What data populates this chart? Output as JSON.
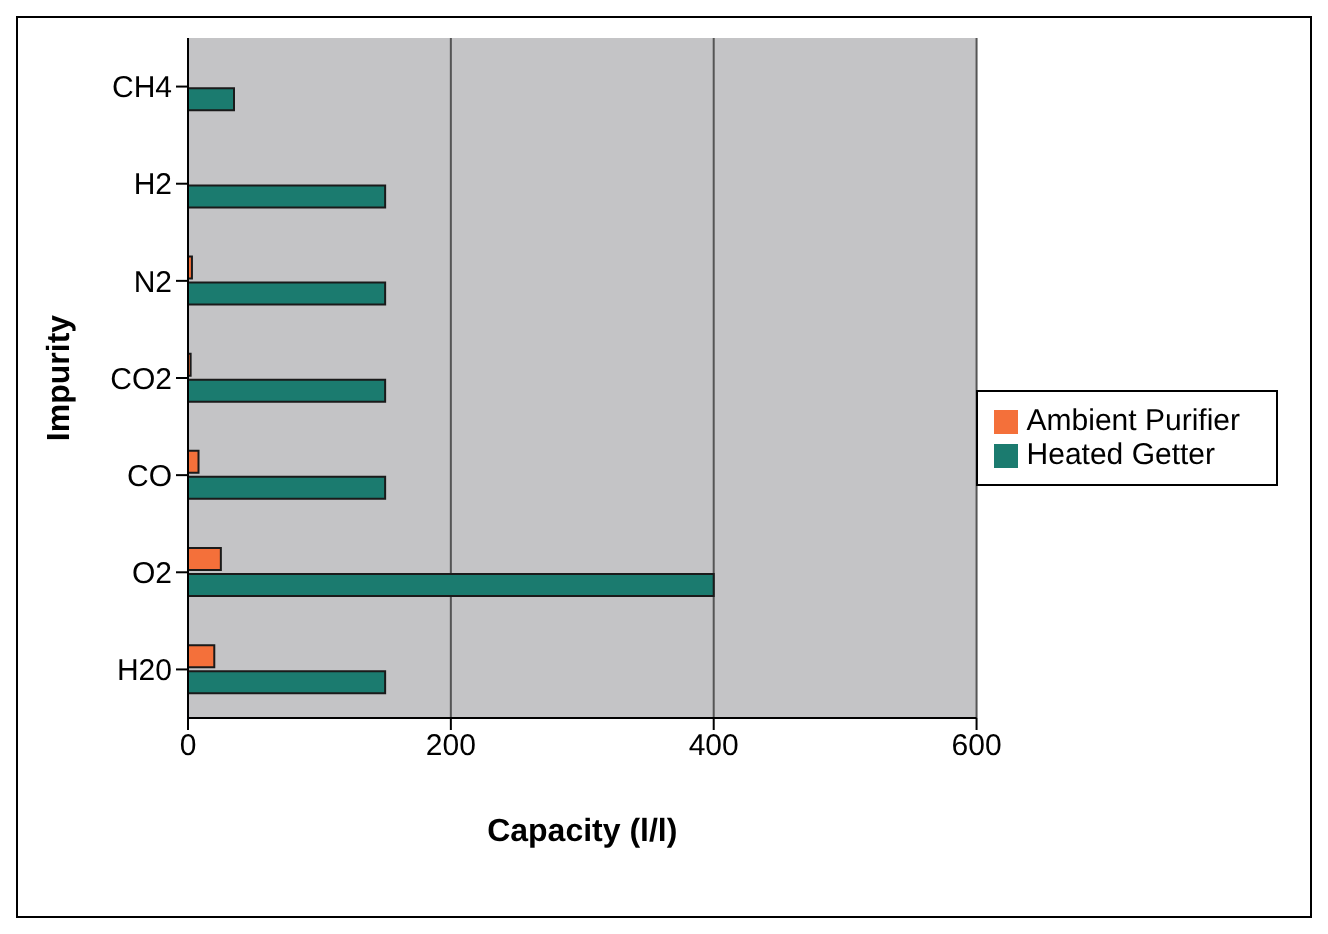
{
  "chart_data": {
    "type": "bar",
    "orientation": "horizontal",
    "xlabel": "Capacity (l/l)",
    "ylabel": "Impurity",
    "categories": [
      "CH4",
      "H2",
      "N2",
      "CO2",
      "CO",
      "O2",
      "H20"
    ],
    "series": [
      {
        "name": "Ambient Purifier",
        "color": "#f4703a",
        "values": [
          null,
          null,
          3,
          2,
          8,
          25,
          20
        ]
      },
      {
        "name": "Heated Getter",
        "color": "#1b7b6f",
        "values": [
          35,
          150,
          150,
          150,
          150,
          400,
          150
        ]
      }
    ],
    "xlim": [
      0,
      600
    ],
    "xticks": [
      0,
      200,
      400,
      600
    ],
    "grid": "x",
    "legend": "right"
  }
}
